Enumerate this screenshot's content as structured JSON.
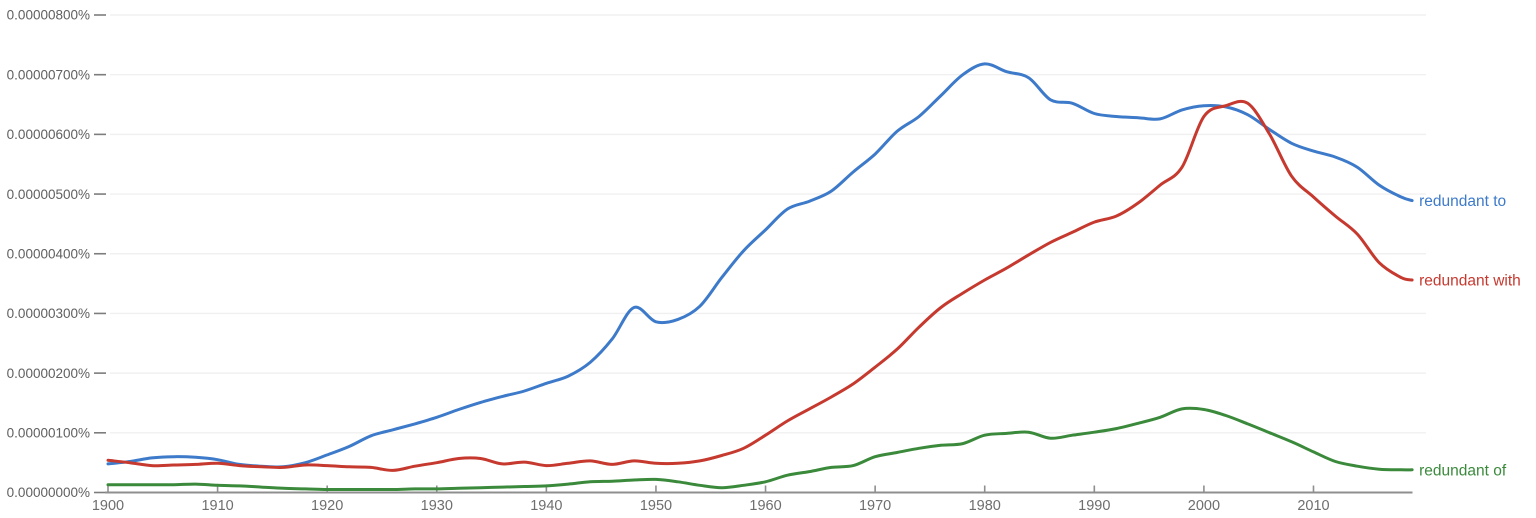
{
  "chart_data": {
    "type": "line",
    "title": "",
    "xlabel": "",
    "ylabel": "",
    "value_unit": "1e-6 percent (0.00000100% = 1.0)",
    "grid": true,
    "legend_position": "right-of-line-end",
    "x_range": [
      1900,
      2019
    ],
    "ylim_labels": [
      "0.00000000%",
      "0.00000800%"
    ],
    "x_axis": {
      "tick_years": [
        1900,
        1910,
        1920,
        1930,
        1940,
        1950,
        1960,
        1970,
        1980,
        1990,
        2000,
        2010
      ],
      "tick_labels": [
        "1900",
        "1910",
        "1920",
        "1930",
        "1940",
        "1950",
        "1960",
        "1970",
        "1980",
        "1990",
        "2000",
        "2010"
      ]
    },
    "y_axis": {
      "tick_values": [
        0,
        1,
        2,
        3,
        4,
        5,
        6,
        7,
        8
      ],
      "tick_labels": [
        "0.00000000%",
        "0.00000100%",
        "0.00000200%",
        "0.00000300%",
        "0.00000400%",
        "0.00000500%",
        "0.00000600%",
        "0.00000700%",
        "0.00000800%"
      ]
    },
    "x": [
      1900,
      1902,
      1904,
      1906,
      1908,
      1910,
      1912,
      1914,
      1916,
      1918,
      1920,
      1922,
      1924,
      1926,
      1928,
      1930,
      1932,
      1934,
      1936,
      1938,
      1940,
      1942,
      1944,
      1946,
      1948,
      1950,
      1952,
      1954,
      1956,
      1958,
      1960,
      1962,
      1964,
      1966,
      1968,
      1970,
      1972,
      1974,
      1976,
      1978,
      1980,
      1982,
      1984,
      1986,
      1988,
      1990,
      1992,
      1994,
      1996,
      1998,
      2000,
      2002,
      2004,
      2006,
      2008,
      2010,
      2012,
      2014,
      2016,
      2018,
      2019
    ],
    "series": [
      {
        "name": "redundant to",
        "color": "#3d7ac9",
        "values": [
          0.48,
          0.52,
          0.58,
          0.6,
          0.59,
          0.55,
          0.47,
          0.44,
          0.43,
          0.5,
          0.63,
          0.77,
          0.95,
          1.05,
          1.15,
          1.26,
          1.39,
          1.51,
          1.61,
          1.7,
          1.83,
          1.95,
          2.18,
          2.57,
          3.1,
          2.86,
          2.9,
          3.12,
          3.6,
          4.05,
          4.4,
          4.75,
          4.88,
          5.05,
          5.37,
          5.67,
          6.05,
          6.3,
          6.65,
          7.0,
          7.18,
          7.05,
          6.95,
          6.58,
          6.52,
          6.35,
          6.3,
          6.28,
          6.26,
          6.41,
          6.48,
          6.46,
          6.33,
          6.08,
          5.85,
          5.72,
          5.62,
          5.45,
          5.15,
          4.95,
          4.89
        ]
      },
      {
        "name": "redundant with",
        "color": "#c6392f",
        "values": [
          0.54,
          0.5,
          0.45,
          0.46,
          0.47,
          0.49,
          0.45,
          0.43,
          0.42,
          0.46,
          0.45,
          0.43,
          0.42,
          0.37,
          0.44,
          0.5,
          0.57,
          0.57,
          0.48,
          0.51,
          0.45,
          0.49,
          0.53,
          0.47,
          0.53,
          0.49,
          0.49,
          0.53,
          0.62,
          0.74,
          0.96,
          1.2,
          1.4,
          1.6,
          1.82,
          2.1,
          2.4,
          2.77,
          3.1,
          3.34,
          3.56,
          3.76,
          3.98,
          4.19,
          4.36,
          4.53,
          4.63,
          4.85,
          5.15,
          5.45,
          6.3,
          6.48,
          6.52,
          6.0,
          5.3,
          4.95,
          4.63,
          4.33,
          3.85,
          3.6,
          3.56
        ]
      },
      {
        "name": "redundant of",
        "color": "#3b8a3c",
        "values": [
          0.13,
          0.13,
          0.13,
          0.13,
          0.14,
          0.12,
          0.11,
          0.09,
          0.07,
          0.06,
          0.05,
          0.05,
          0.05,
          0.05,
          0.06,
          0.06,
          0.07,
          0.08,
          0.09,
          0.1,
          0.11,
          0.14,
          0.18,
          0.19,
          0.21,
          0.22,
          0.18,
          0.12,
          0.08,
          0.12,
          0.18,
          0.29,
          0.35,
          0.42,
          0.45,
          0.6,
          0.67,
          0.74,
          0.79,
          0.82,
          0.96,
          0.99,
          1.01,
          0.91,
          0.96,
          1.01,
          1.07,
          1.16,
          1.26,
          1.4,
          1.39,
          1.29,
          1.15,
          1.0,
          0.85,
          0.68,
          0.52,
          0.44,
          0.39,
          0.38,
          0.38
        ]
      }
    ],
    "colors": {
      "axis": "#8f8f8f",
      "grid": "#f0f0f0",
      "y_label": "#5f5f5f",
      "x_label": "#6e6e6e",
      "y_tick_dash": "#7d7d7d"
    }
  }
}
